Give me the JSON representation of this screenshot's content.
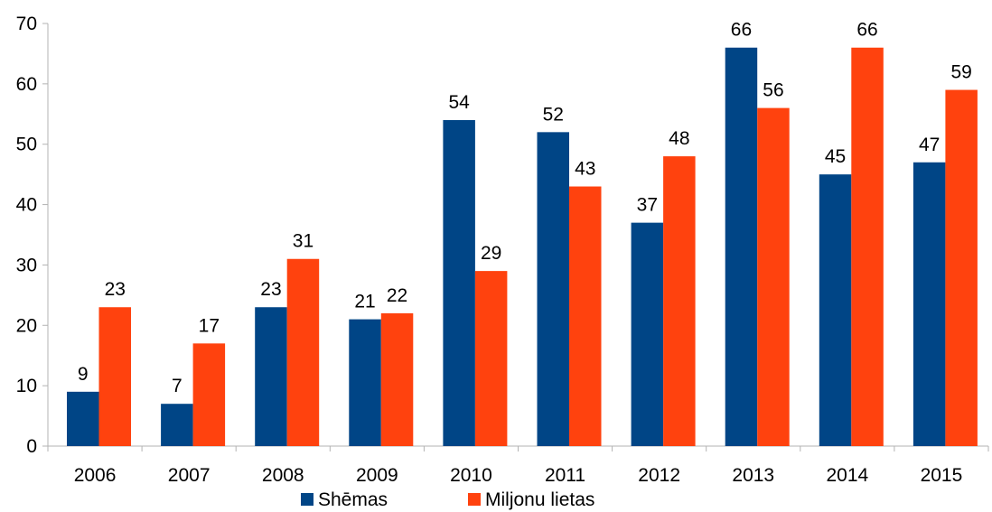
{
  "chart_data": {
    "type": "bar",
    "title": "",
    "xlabel": "",
    "ylabel": "",
    "categories": [
      "2006",
      "2007",
      "2008",
      "2009",
      "2010",
      "2011",
      "2012",
      "2013",
      "2014",
      "2015"
    ],
    "series": [
      {
        "name": "Shēmas",
        "color": "#004586",
        "values": [
          9,
          7,
          23,
          21,
          54,
          52,
          37,
          66,
          45,
          47
        ]
      },
      {
        "name": "Miljonu lietas",
        "color": "#ff420e",
        "values": [
          23,
          17,
          31,
          22,
          29,
          43,
          48,
          56,
          66,
          59
        ]
      }
    ],
    "ylim": [
      0,
      70
    ],
    "yticks": [
      0,
      10,
      20,
      30,
      40,
      50,
      60,
      70
    ],
    "grid": false,
    "legend": "bottom",
    "data_labels": true
  }
}
